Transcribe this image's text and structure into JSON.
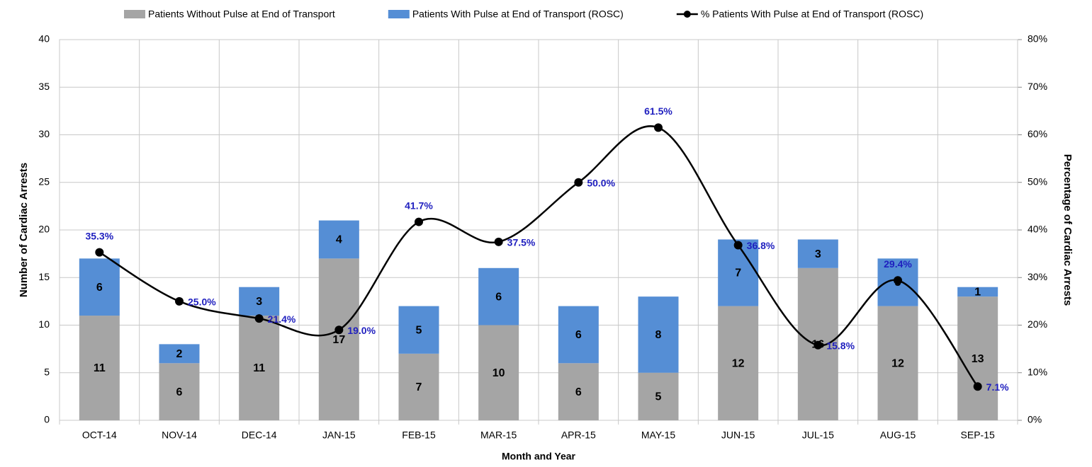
{
  "chart_data": {
    "type": "stacked-bar-line",
    "categories": [
      "OCT-14",
      "NOV-14",
      "DEC-14",
      "JAN-15",
      "FEB-15",
      "MAR-15",
      "APR-15",
      "MAY-15",
      "JUN-15",
      "JUL-15",
      "AUG-15",
      "SEP-15"
    ],
    "series": [
      {
        "name": "Patients Without Pulse at End of Transport",
        "color": "#a5a5a5",
        "type": "bar",
        "values": [
          11,
          6,
          11,
          17,
          7,
          10,
          6,
          5,
          12,
          16,
          12,
          13
        ]
      },
      {
        "name": "Patients With Pulse at End of Transport (ROSC)",
        "color": "#558ed5",
        "type": "bar",
        "values": [
          6,
          2,
          3,
          4,
          5,
          6,
          6,
          8,
          7,
          3,
          5,
          1
        ]
      },
      {
        "name": "% Patients With Pulse at End of Transport (ROSC)",
        "color": "#000000",
        "type": "line",
        "axis": "y2",
        "smooth": true,
        "values": [
          35.3,
          25.0,
          21.4,
          19.0,
          41.7,
          37.5,
          50.0,
          61.5,
          36.8,
          15.8,
          29.4,
          7.1
        ],
        "value_labels": [
          "35.3%",
          "25.0%",
          "21.4%",
          "19.0%",
          "41.7%",
          "37.5%",
          "50.0%",
          "61.5%",
          "36.8%",
          "15.8%",
          "29.4%",
          "7.1%"
        ]
      }
    ],
    "xlabel": "Month and Year",
    "ylabel": "Number of Cardiac Arrests",
    "y2label": "Percentage of Cardiac Arrests",
    "ylim": [
      0,
      40
    ],
    "yticks": [
      0,
      5,
      10,
      15,
      20,
      25,
      30,
      35,
      40
    ],
    "y2lim": [
      0,
      80
    ],
    "y2ticks": [
      {
        "value": 0,
        "label": "0%"
      },
      {
        "value": 10,
        "label": "10%"
      },
      {
        "value": 20,
        "label": "20%"
      },
      {
        "value": 30,
        "label": "30%"
      },
      {
        "value": 40,
        "label": "40%"
      },
      {
        "value": 50,
        "label": "50%"
      },
      {
        "value": 60,
        "label": "60%"
      },
      {
        "value": 70,
        "label": "70%"
      },
      {
        "value": 80,
        "label": "80%"
      }
    ],
    "grid": true,
    "legend": "top"
  }
}
